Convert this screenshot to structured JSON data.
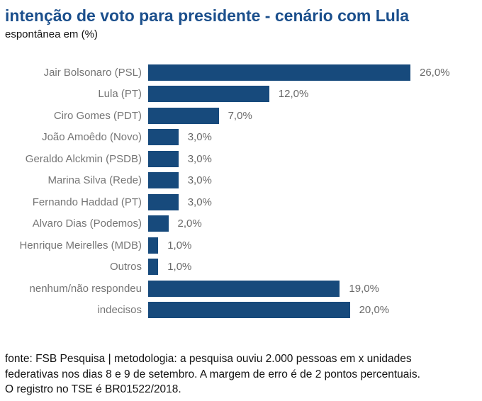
{
  "header": {
    "title": "intenção de voto para presidente - cenário com Lula",
    "subtitle": "espontânea em (%)"
  },
  "chart_data": {
    "type": "bar",
    "orientation": "horizontal",
    "title": "intenção de voto para presidente - cenário com Lula",
    "subtitle": "espontânea em (%)",
    "unit": "%",
    "categories": [
      "Jair Bolsonaro (PSL)",
      "Lula (PT)",
      "Ciro Gomes (PDT)",
      "João Amoêdo (Novo)",
      "Geraldo Alckmin (PSDB)",
      "Marina Silva (Rede)",
      "Fernando Haddad (PT)",
      "Alvaro Dias (Podemos)",
      "Henrique Meirelles (MDB)",
      "Outros",
      "nenhum/não respondeu",
      "indecisos"
    ],
    "values": [
      26.0,
      12.0,
      7.0,
      3.0,
      3.0,
      3.0,
      3.0,
      2.0,
      1.0,
      1.0,
      19.0,
      20.0
    ],
    "value_labels": [
      "26,0%",
      "12,0%",
      "7,0%",
      "3,0%",
      "3,0%",
      "3,0%",
      "3,0%",
      "2,0%",
      "1,0%",
      "1,0%",
      "19,0%",
      "20,0%"
    ],
    "xlim": [
      0,
      32
    ],
    "grid": false,
    "legend": "none",
    "colors": {
      "bar": "#174A7C",
      "title": "#1B4F8C",
      "category_label": "#757575",
      "value_label": "#696969",
      "footer_text": "#111111",
      "background": "#FFFFFF"
    }
  },
  "footer": {
    "lines": [
      "fonte: FSB Pesquisa | metodologia: a pesquisa ouviu 2.000 pessoas em x unidades",
      "federativas nos dias 8 e 9 de setembro. A margem de erro é de 2 pontos percentuais.",
      "O registro no TSE é BR01522/2018."
    ]
  }
}
